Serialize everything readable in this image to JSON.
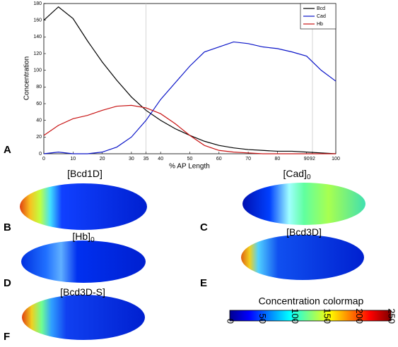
{
  "chart_data": {
    "type": "line",
    "panel": "A",
    "ylabel": "Concentration",
    "xlabel": "% AP Length",
    "x": [
      0,
      5,
      10,
      15,
      20,
      25,
      30,
      35,
      40,
      45,
      50,
      55,
      60,
      65,
      70,
      75,
      80,
      85,
      90,
      95,
      100
    ],
    "series": [
      {
        "name": "Bcd",
        "color": "#000000",
        "values": [
          160,
          176,
          162,
          135,
          110,
          88,
          68,
          52,
          40,
          30,
          22,
          15,
          10,
          7,
          5,
          4,
          3,
          3,
          2,
          1,
          0
        ]
      },
      {
        "name": "Cad",
        "color": "#0a14c8",
        "values": [
          0,
          2,
          0,
          0,
          2,
          8,
          20,
          40,
          65,
          85,
          105,
          122,
          128,
          134,
          132,
          128,
          126,
          122,
          117,
          100,
          87
        ]
      },
      {
        "name": "Hb",
        "color": "#c81414",
        "values": [
          22,
          34,
          42,
          46,
          52,
          57,
          58,
          55,
          48,
          36,
          22,
          10,
          4,
          2,
          1,
          0,
          0,
          0,
          0,
          0,
          0
        ]
      }
    ],
    "xlim": [
      0,
      100
    ],
    "xticks": [
      0,
      10,
      20,
      30,
      35,
      40,
      50,
      60,
      70,
      80,
      90,
      92,
      100
    ],
    "ylim": [
      0,
      180
    ],
    "yticks": [
      0,
      20,
      40,
      60,
      80,
      100,
      120,
      140,
      160,
      180
    ],
    "reference_lines": [
      35,
      92
    ],
    "legend": "top-right"
  },
  "panels": [
    {
      "letter": "B",
      "label": "[Bcd1D]",
      "subscript": null
    },
    {
      "letter": "C",
      "label": "[Cad]",
      "subscript": "0"
    },
    {
      "letter": "D",
      "label": "[Hb]",
      "subscript": "0"
    },
    {
      "letter": "E",
      "label": "[Bcd3D]",
      "subscript": null
    },
    {
      "letter": "F",
      "label": "[Bcd3D-S]",
      "subscript": null
    }
  ],
  "colorbar": {
    "title": "Concentration colormap",
    "lim": [
      0,
      250
    ],
    "ticks": [
      0,
      50,
      100,
      150,
      200,
      250
    ]
  }
}
